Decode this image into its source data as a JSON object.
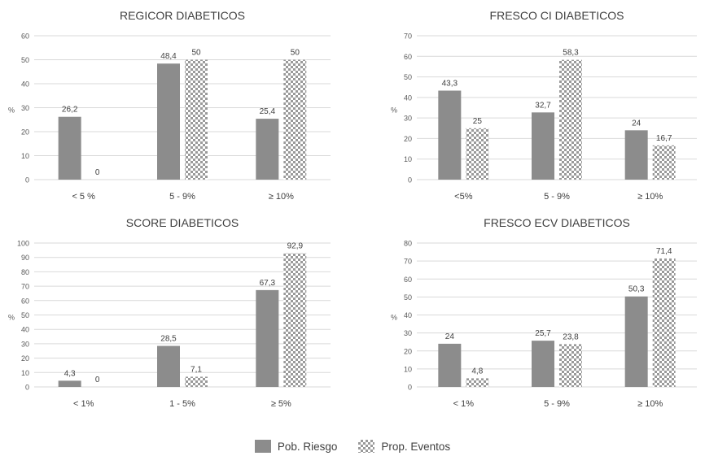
{
  "chart_data": [
    {
      "type": "bar",
      "title": "REGICOR DIABETICOS",
      "ylabel": "%",
      "categories": [
        "< 5 %",
        "5 - 9%",
        "≥ 10%"
      ],
      "ylim": [
        0,
        60
      ],
      "yticks": [
        0,
        10,
        20,
        30,
        40,
        50,
        60
      ],
      "series": [
        {
          "name": "Pob. Riesgo",
          "values": [
            26.2,
            48.4,
            25.4
          ],
          "labels": [
            "26,2",
            "48,4",
            "25,4"
          ]
        },
        {
          "name": "Prop. Eventos",
          "values": [
            0,
            50,
            50
          ],
          "labels": [
            "0",
            "50",
            "50"
          ]
        }
      ]
    },
    {
      "type": "bar",
      "title": "FRESCO CI DIABETICOS",
      "ylabel": "%",
      "categories": [
        "<5%",
        "5 - 9%",
        "≥ 10%"
      ],
      "ylim": [
        0,
        70
      ],
      "yticks": [
        0,
        10,
        20,
        30,
        40,
        50,
        60,
        70
      ],
      "series": [
        {
          "name": "Pob. Riesgo",
          "values": [
            43.3,
            32.7,
            24
          ],
          "labels": [
            "43,3",
            "32,7",
            "24"
          ]
        },
        {
          "name": "Prop. Eventos",
          "values": [
            25,
            58.3,
            16.7
          ],
          "labels": [
            "25",
            "58,3",
            "16,7"
          ]
        }
      ]
    },
    {
      "type": "bar",
      "title": "SCORE DIABETICOS",
      "ylabel": "%",
      "categories": [
        "< 1%",
        "1 - 5%",
        "≥ 5%"
      ],
      "ylim": [
        0,
        100
      ],
      "yticks": [
        0,
        10,
        20,
        30,
        40,
        50,
        60,
        70,
        80,
        90,
        100
      ],
      "series": [
        {
          "name": "Pob. Riesgo",
          "values": [
            4.3,
            28.5,
            67.3
          ],
          "labels": [
            "4,3",
            "28,5",
            "67,3"
          ]
        },
        {
          "name": "Prop. Eventos",
          "values": [
            0,
            7.1,
            92.9
          ],
          "labels": [
            "0",
            "7,1",
            "92,9"
          ]
        }
      ]
    },
    {
      "type": "bar",
      "title": "FRESCO ECV DIABETICOS",
      "ylabel": "%",
      "categories": [
        "< 1%",
        "5 - 9%",
        "≥ 10%"
      ],
      "ylim": [
        0,
        80
      ],
      "yticks": [
        0,
        10,
        20,
        30,
        40,
        50,
        60,
        70,
        80
      ],
      "series": [
        {
          "name": "Pob. Riesgo",
          "values": [
            24,
            25.7,
            50.3
          ],
          "labels": [
            "24",
            "25,7",
            "50,3"
          ]
        },
        {
          "name": "Prop. Eventos",
          "values": [
            4.8,
            23.8,
            71.4
          ],
          "labels": [
            "4,8",
            "23,8",
            "71,4"
          ]
        }
      ]
    }
  ],
  "legend": {
    "items": [
      {
        "label": "Pob. Riesgo",
        "style": "solid",
        "color": "#8c8c8c"
      },
      {
        "label": "Prop. Eventos",
        "style": "checkered",
        "color": "#9a9a9a"
      }
    ]
  }
}
